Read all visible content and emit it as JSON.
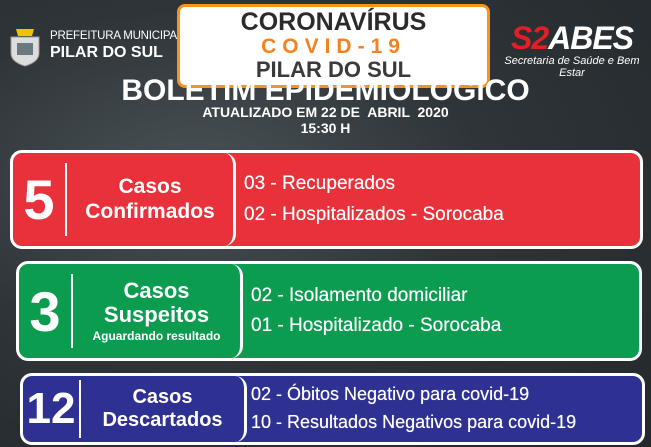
{
  "header": {
    "prefeitura_line1": "PREFEITURA MUNICIPAL",
    "prefeitura_line2": "PILAR DO SUL",
    "center_title": "CORONAVÍRUS",
    "center_subtitle": "COVID-19",
    "center_city": "PILAR DO SUL",
    "logo_text_red": "S2",
    "logo_text": "ABES",
    "logo_tagline": "Secretaria de Saúde e Bem Estar"
  },
  "bulletin": {
    "title": "BOLETIM EPIDEMIOLÓGICO",
    "updated": "ATUALIZADO EM 22 DE  ABRIL  2020",
    "time": "15:30 H"
  },
  "cards": [
    {
      "count": "5",
      "label1": "Casos",
      "label2": "Confirmados",
      "note": "",
      "items": [
        "03 - Recuperados",
        "02 - Hospitalizados - Sorocaba"
      ],
      "color": "#e8313a"
    },
    {
      "count": "3",
      "label1": "Casos",
      "label2": "Suspeitos",
      "note": "Aguardando resultado",
      "items": [
        "02 - Isolamento domiciliar",
        "01 - Hospitalizado - Sorocaba"
      ],
      "color": "#0b9c50"
    },
    {
      "count": "12",
      "label1": "Casos",
      "label2": "Descartados",
      "note": "",
      "items": [
        "02 - Óbitos Negativo para covid-19",
        "10 - Resultados Negativos para covid-19"
      ],
      "color": "#2e3192"
    }
  ]
}
